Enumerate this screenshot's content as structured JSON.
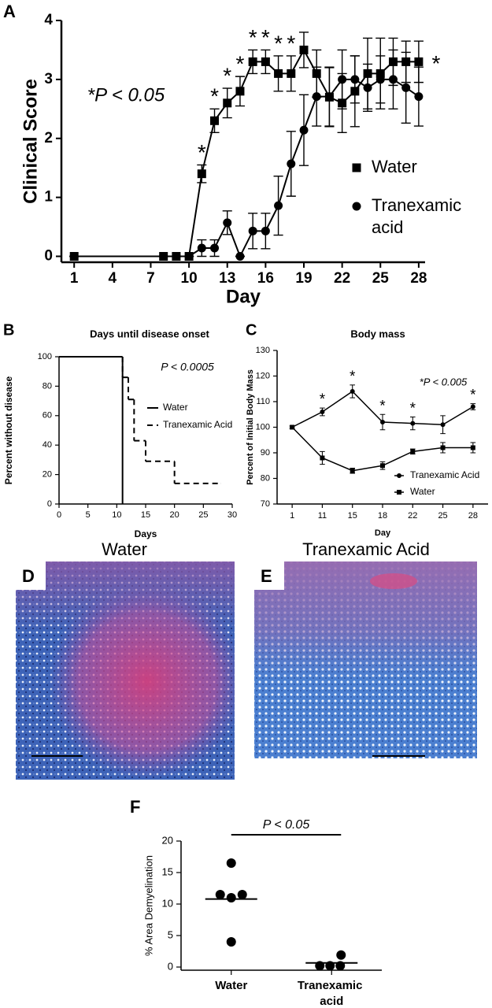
{
  "chart_data": [
    {
      "panel": "A",
      "type": "line",
      "xlabel": "Day",
      "ylabel": "Clinical Score",
      "x": [
        1,
        8,
        9,
        10,
        11,
        12,
        13,
        14,
        15,
        16,
        17,
        18,
        19,
        20,
        21,
        22,
        23,
        24,
        25,
        26,
        27,
        28
      ],
      "xlim": [
        0,
        28.5
      ],
      "xticks": [
        1,
        4,
        7,
        10,
        13,
        16,
        19,
        22,
        25,
        28
      ],
      "ylim": [
        -0.1,
        4
      ],
      "yticks": [
        0,
        1,
        2,
        3,
        4
      ],
      "series": [
        {
          "name": "Water",
          "color": "#000000",
          "marker": "square",
          "values": [
            0,
            0,
            0,
            0,
            1.4,
            2.3,
            2.6,
            2.8,
            3.3,
            3.3,
            3.1,
            3.1,
            3.5,
            3.1,
            2.7,
            2.6,
            2.8,
            3.1,
            3.1,
            3.3,
            3.3,
            3.3
          ],
          "errors": [
            0,
            0,
            0,
            0,
            0.15,
            0.2,
            0.25,
            0.25,
            0.2,
            0.2,
            0.3,
            0.3,
            0.3,
            0.4,
            0.5,
            0.5,
            0.6,
            0.6,
            0.6,
            0.4,
            0.35,
            0.35
          ]
        },
        {
          "name": "Tranexamic acid",
          "color": "#000000",
          "marker": "circle",
          "values": [
            0,
            0,
            0,
            0,
            0.14,
            0.14,
            0.57,
            0,
            0.43,
            0.43,
            0.86,
            1.57,
            2.14,
            2.71,
            2.71,
            3.0,
            3.0,
            2.86,
            3.0,
            3.0,
            2.86,
            2.71
          ],
          "errors": [
            0,
            0,
            0,
            0,
            0.14,
            0.14,
            0.2,
            0,
            0.3,
            0.3,
            0.5,
            0.55,
            0.6,
            0.5,
            0.5,
            0.5,
            0.4,
            0.4,
            0.4,
            0.5,
            0.6,
            0.5
          ]
        }
      ],
      "significance": {
        "symbol": "*",
        "x": [
          11,
          12,
          13,
          14,
          15,
          16,
          17,
          18
        ]
      },
      "end_marker": "*",
      "annotation": "*P < 0.05",
      "legend": "right"
    },
    {
      "panel": "B",
      "type": "step",
      "title": "Days until disease onset",
      "xlabel": "Days",
      "ylabel": "Percent without disease",
      "xlim": [
        0,
        30
      ],
      "xticks": [
        0,
        5,
        10,
        15,
        20,
        25,
        30
      ],
      "ylim": [
        0,
        100
      ],
      "yticks": [
        0,
        20,
        40,
        60,
        80,
        100
      ],
      "series": [
        {
          "name": "Water",
          "color": "#000000",
          "dash": "solid",
          "x": [
            0,
            11
          ],
          "values": [
            100,
            0
          ]
        },
        {
          "name": "Tranexamic Acid",
          "color": "#000000",
          "dash": "dashed",
          "x": [
            0,
            11,
            12,
            13,
            15,
            20,
            28
          ],
          "values": [
            100,
            86,
            71,
            43,
            29,
            14,
            14
          ]
        }
      ],
      "annotation": "P < 0.0005",
      "legend": "right"
    },
    {
      "panel": "C",
      "type": "line",
      "title": "Body mass",
      "xlabel": "Day",
      "ylabel": "Percent of Initial Body Mass",
      "categories": [
        "1",
        "11",
        "15",
        "18",
        "22",
        "25",
        "28"
      ],
      "ylim": [
        70,
        130
      ],
      "yticks": [
        70,
        80,
        90,
        100,
        110,
        120,
        130
      ],
      "series": [
        {
          "name": "Tranexamic Acid",
          "color": "#000000",
          "marker": "circle",
          "values": [
            100,
            106,
            114,
            102,
            101.5,
            101,
            108
          ],
          "errors": [
            0.5,
            1.5,
            2.5,
            3,
            2.5,
            3.5,
            1.2
          ]
        },
        {
          "name": "Water",
          "color": "#000000",
          "marker": "square",
          "values": [
            100,
            88,
            83,
            85,
            90.5,
            92,
            92
          ],
          "errors": [
            0.5,
            2.5,
            1,
            1.5,
            1,
            2,
            2
          ]
        }
      ],
      "significance": {
        "symbol": "*",
        "categories": [
          "11",
          "15",
          "18",
          "22",
          "28"
        ]
      },
      "annotation": "*P < 0.005",
      "legend": "right"
    },
    {
      "panel": "F",
      "type": "dot",
      "ylabel": "% Area Demyelination",
      "categories": [
        "Water",
        "Tranexamic acid"
      ],
      "points": [
        [
          16.5,
          11.5,
          11,
          11.5,
          4
        ],
        [
          1.9,
          0.2,
          0.2,
          0.2
        ]
      ],
      "means": [
        10.8,
        0.65
      ],
      "color": "#000000",
      "ylim": [
        -0.5,
        20
      ],
      "yticks": [
        0,
        5,
        10,
        15,
        20
      ],
      "significance": "P < 0.05"
    }
  ],
  "images": [
    {
      "panel": "D",
      "title": "Water"
    },
    {
      "panel": "E",
      "title": "Tranexamic Acid"
    }
  ]
}
